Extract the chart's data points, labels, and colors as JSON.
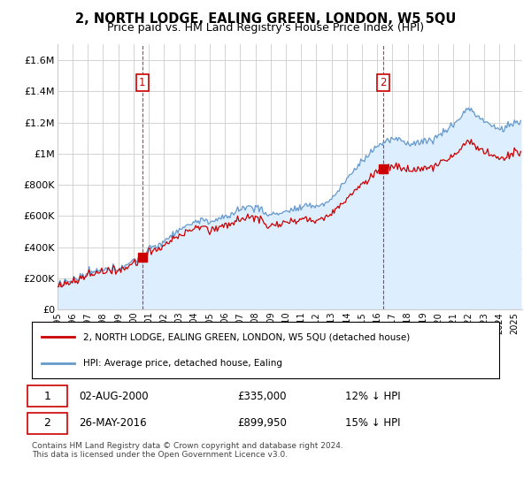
{
  "title": "2, NORTH LODGE, EALING GREEN, LONDON, W5 5QU",
  "subtitle": "Price paid vs. HM Land Registry's House Price Index (HPI)",
  "ylabel_ticks": [
    "£0",
    "£200K",
    "£400K",
    "£600K",
    "£800K",
    "£1M",
    "£1.2M",
    "£1.4M",
    "£1.6M"
  ],
  "ytick_values": [
    0,
    200000,
    400000,
    600000,
    800000,
    1000000,
    1200000,
    1400000,
    1600000
  ],
  "ylim": [
    0,
    1700000
  ],
  "xlim_start": 1995.0,
  "xlim_end": 2025.5,
  "legend_entry1": "2, NORTH LODGE, EALING GREEN, LONDON, W5 5QU (detached house)",
  "legend_entry2": "HPI: Average price, detached house, Ealing",
  "sale1_date": "02-AUG-2000",
  "sale1_price": "£335,000",
  "sale1_hpi": "12% ↓ HPI",
  "sale2_date": "26-MAY-2016",
  "sale2_price": "£899,950",
  "sale2_hpi": "15% ↓ HPI",
  "footnote": "Contains HM Land Registry data © Crown copyright and database right 2024.\nThis data is licensed under the Open Government Licence v3.0.",
  "line_color_sales": "#cc0000",
  "line_color_hpi": "#6699cc",
  "fill_color_hpi": "#ddeeff",
  "point1_x": 2000.583,
  "point1_y": 335000,
  "point2_x": 2016.4,
  "point2_y": 899950,
  "background_color": "#ffffff",
  "grid_color": "#cccccc"
}
